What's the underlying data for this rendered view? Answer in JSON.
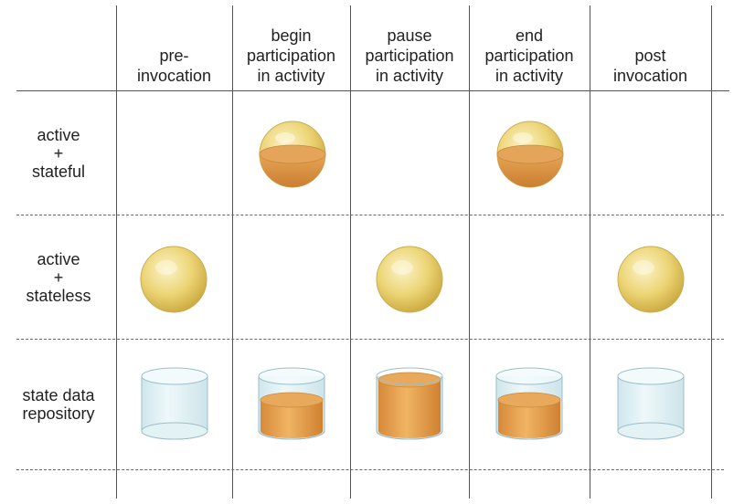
{
  "columns": [
    {
      "label": "pre-\ninvocation"
    },
    {
      "label": "begin\nparticipation\nin activity"
    },
    {
      "label": "pause\nparticipation\nin activity"
    },
    {
      "label": "end\nparticipation\nin activity"
    },
    {
      "label": "post\ninvocation"
    }
  ],
  "rows": [
    {
      "label": "active\n+\nstateful"
    },
    {
      "label": "active\n+\nstateless"
    },
    {
      "label": "state data\nrepository"
    }
  ],
  "cells": {
    "stateful": [
      "empty",
      "sphere-half-filled",
      "empty",
      "sphere-half-filled",
      "empty"
    ],
    "stateless": [
      "sphere",
      "empty",
      "sphere",
      "empty",
      "sphere"
    ],
    "repository": [
      "cylinder-empty",
      "cylinder-half-filled",
      "cylinder-full",
      "cylinder-half-filled",
      "cylinder-empty"
    ]
  },
  "colors": {
    "sphere_gold": "#e8cc60",
    "state_orange": "#d4893c",
    "container_blue": "#dceef2",
    "grid_line": "#555555"
  }
}
